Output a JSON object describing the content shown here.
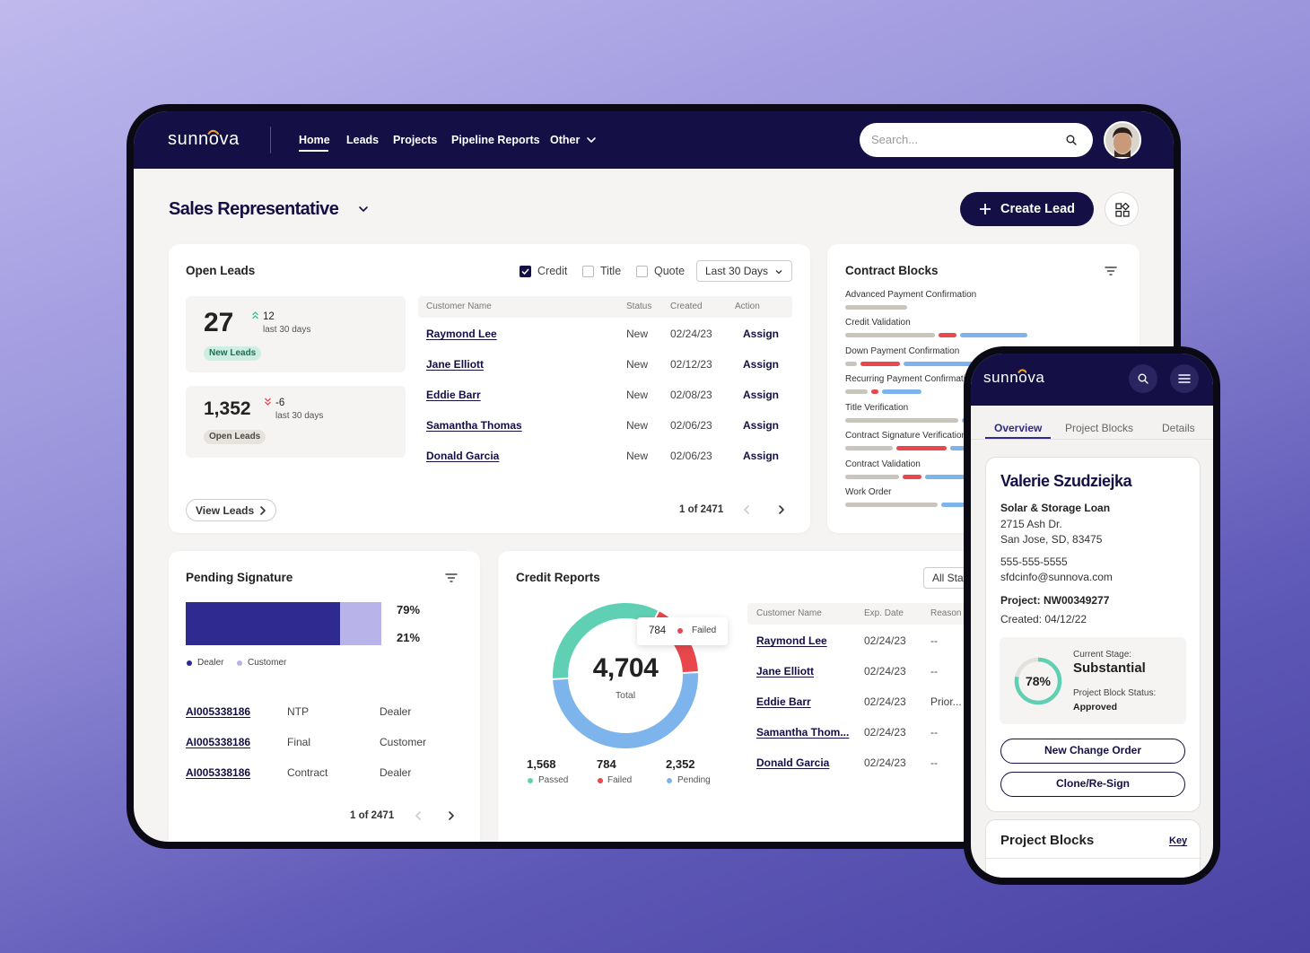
{
  "nav": {
    "logo": "sunnova",
    "menu": [
      "Home",
      "Leads",
      "Projects",
      "Pipeline Reports",
      "Other"
    ],
    "search_placeholder": "Search..."
  },
  "header": {
    "title": "Sales Representative",
    "create_button": "Create Lead"
  },
  "open_leads": {
    "title": "Open Leads",
    "filters": [
      "Credit",
      "Title",
      "Quote"
    ],
    "date_range": "Last 30 Days",
    "stats": [
      {
        "value": "27",
        "change": "12",
        "period": "last 30 days",
        "tag": "New Leads"
      },
      {
        "value": "1,352",
        "change": "-6",
        "period": "last 30 days",
        "tag": "Open Leads"
      }
    ],
    "table": {
      "columns": [
        "Customer Name",
        "Status",
        "Created",
        "Action"
      ],
      "rows": [
        [
          "Raymond Lee",
          "New",
          "02/24/23",
          "Assign"
        ],
        [
          "Jane Elliott",
          "New",
          "02/12/23",
          "Assign"
        ],
        [
          "Eddie Barr",
          "New",
          "02/08/23",
          "Assign"
        ],
        [
          "Samantha Thomas",
          "New",
          "02/06/23",
          "Assign"
        ],
        [
          "Donald Garcia",
          "New",
          "02/06/23",
          "Assign"
        ]
      ]
    },
    "view_button": "View Leads",
    "pagination": "1 of 2471"
  },
  "contract_blocks": {
    "title": "Contract Blocks",
    "items": [
      "Advanced Payment Confirmation",
      "Credit Validation",
      "Down Payment Confirmation",
      "Recurring Payment Confirmation",
      "Title Verification",
      "Contract Signature Verification",
      "Contract Validation",
      "Work Order"
    ]
  },
  "pending_signature": {
    "title": "Pending Signature",
    "chart_data": {
      "type": "bar",
      "series": [
        {
          "name": "Dealer",
          "color": "#2e2a8f",
          "values": [
            79
          ],
          "value_labels": [
            "79%"
          ]
        },
        {
          "name": "Customer",
          "color": "#b8b3e9",
          "values": [
            21
          ],
          "value_labels": [
            "21%"
          ]
        }
      ]
    },
    "table": {
      "rows": [
        [
          "AI005338186",
          "NTP",
          "Dealer"
        ],
        [
          "AI005338186",
          "Final",
          "Customer"
        ],
        [
          "AI005338186",
          "Contract",
          "Dealer"
        ]
      ]
    },
    "pagination": "1 of 2471"
  },
  "credit_reports": {
    "title": "Credit Reports",
    "filter": "All Status",
    "chart_data": {
      "type": "pie",
      "categories": [
        "Passed",
        "Failed",
        "Pending"
      ],
      "values": [
        1568,
        784,
        2352
      ],
      "value_labels": [
        "1,568",
        "784",
        "2,352"
      ],
      "colors": [
        "#5fd0b4",
        "#e8474c",
        "#7db4ec"
      ],
      "center_label": "4,704",
      "center_caption": "Total"
    },
    "table": {
      "columns": [
        "Customer Name",
        "Exp. Date",
        "Reason"
      ],
      "rows": [
        [
          "Raymond Lee",
          "02/24/23",
          "--"
        ],
        [
          "Jane Elliott",
          "02/24/23",
          "--"
        ],
        [
          "Eddie Barr",
          "02/24/23",
          "Prior..."
        ],
        [
          "Samantha Thom...",
          "02/24/23",
          "--"
        ],
        [
          "Donald Garcia",
          "02/24/23",
          "--"
        ]
      ]
    }
  },
  "mobile": {
    "logo": "sunnova",
    "tabs": [
      "Overview",
      "Project Blocks",
      "Details"
    ],
    "customer": {
      "name": "Valerie Szudziejka",
      "loan": "Solar & Storage Loan",
      "address": [
        "2715 Ash Dr.",
        "San Jose, SD, 83475"
      ],
      "phone": "555-555-5555",
      "email": "sfdcinfo@sunnova.com",
      "project": "Project: NW00349277",
      "created": "Created: 04/12/22"
    },
    "stage": {
      "chart_data": {
        "type": "progress",
        "value": 78,
        "value_label": "78%",
        "color": "#5fd0b4"
      },
      "stage_label": "Current Stage:",
      "stage": "Substantial",
      "status_label": "Project Block Status:",
      "status": "Approved"
    },
    "buttons": [
      "New Change Order",
      "Clone/Re-Sign"
    ],
    "section": {
      "title": "Project Blocks",
      "link": "Key"
    }
  }
}
